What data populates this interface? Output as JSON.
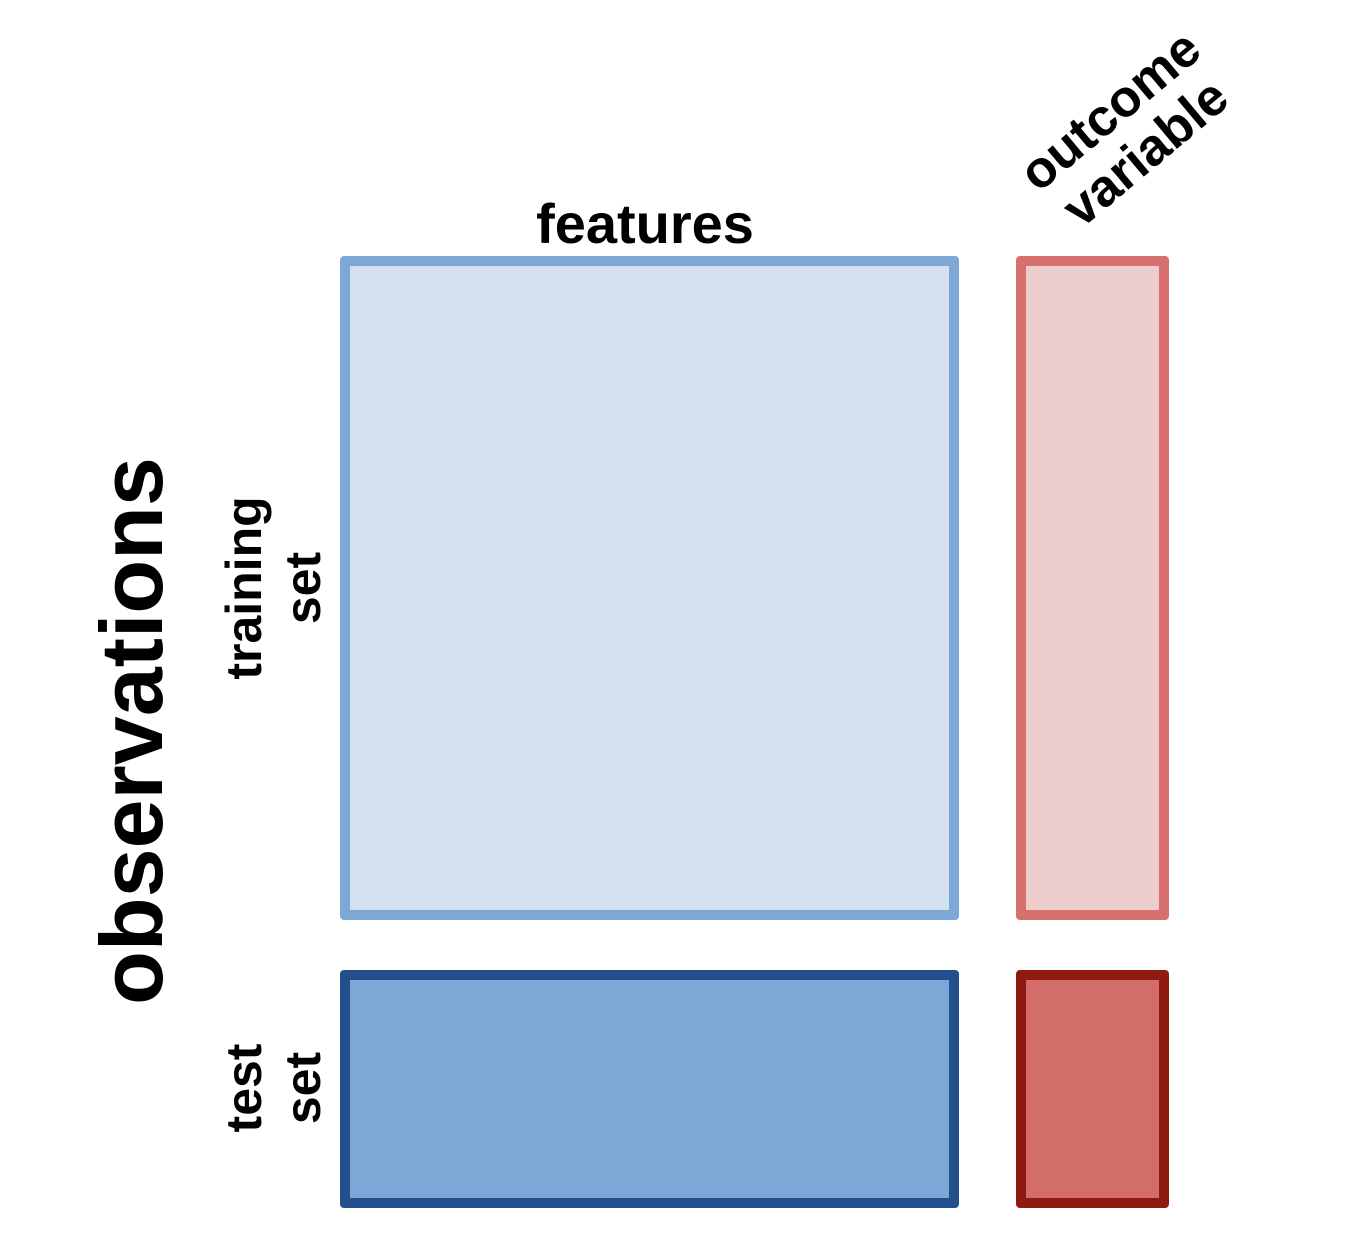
{
  "labels": {
    "features": "features",
    "outcome_line1": "outcome",
    "outcome_line2": "variable",
    "observations": "observations",
    "training_line1": "training",
    "training_line2": "set",
    "test_line1": "test",
    "test_line2": "set"
  },
  "colors": {
    "train_features_fill": "#d4e1f1",
    "train_features_border": "#7ca7d7",
    "train_outcome_fill": "#edcdcb",
    "train_outcome_border": "#d7706e",
    "test_features_fill": "#7ca7d7",
    "test_features_border": "#23508d",
    "test_outcome_fill": "#d26d6a",
    "test_outcome_border": "#8e1a12"
  }
}
